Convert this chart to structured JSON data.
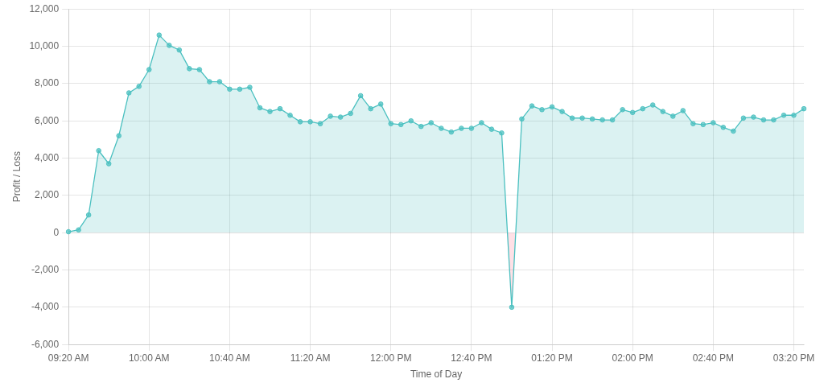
{
  "chart_data": {
    "type": "area",
    "xlabel": "Time of Day",
    "ylabel": "Profit / Loss",
    "categories": [
      "09:20 AM",
      null,
      null,
      null,
      null,
      null,
      null,
      null,
      "10:00 AM",
      null,
      null,
      null,
      null,
      null,
      null,
      null,
      "10:40 AM",
      null,
      null,
      null,
      null,
      null,
      null,
      null,
      "11:20 AM",
      null,
      null,
      null,
      null,
      null,
      null,
      null,
      "12:00 PM",
      null,
      null,
      null,
      null,
      null,
      null,
      null,
      "12:40 PM",
      null,
      null,
      null,
      null,
      null,
      null,
      null,
      "01:20 PM",
      null,
      null,
      null,
      null,
      null,
      null,
      null,
      "02:00 PM",
      null,
      null,
      null,
      null,
      null,
      null,
      null,
      "02:40 PM",
      null,
      null,
      null,
      null,
      null,
      null,
      null,
      "03:20 PM",
      null
    ],
    "series": [
      {
        "color": "#4bc0c0",
        "values": [
          50,
          150,
          950,
          4400,
          3700,
          5200,
          7500,
          7850,
          8750,
          10600,
          10050,
          9800,
          8800,
          8750,
          8100,
          8100,
          7700,
          7700,
          7800,
          6700,
          6500,
          6650,
          6300,
          5950,
          5950,
          5850,
          6250,
          6200,
          6400,
          7350,
          6650,
          6900,
          5850,
          5800,
          6000,
          5700,
          5900,
          5600,
          5400,
          5600,
          5600,
          5900,
          5550,
          5350,
          -4000,
          6100,
          6800,
          6600,
          6750,
          6500,
          6150,
          6150,
          6100,
          6050,
          6050,
          6600,
          6450,
          6650,
          6850,
          6500,
          6250,
          6550,
          5850,
          5800,
          5900,
          5650,
          5450,
          6150,
          6200,
          6050,
          6050,
          6300,
          6300,
          6650
        ]
      }
    ],
    "ylim": [
      -6000,
      12000
    ],
    "yticks": [
      {
        "value": -6000,
        "label": "-6,000"
      },
      {
        "value": -4000,
        "label": "-4,000"
      },
      {
        "value": -2000,
        "label": "-2,000"
      },
      0,
      {
        "value": 2000,
        "label": "2,000"
      },
      {
        "value": 4000,
        "label": "4,000"
      },
      {
        "value": 6000,
        "label": "6,000"
      },
      {
        "value": 8000,
        "label": "8,000"
      },
      {
        "value": 10000,
        "label": "10,000"
      },
      {
        "value": 12000,
        "label": "12,000"
      }
    ],
    "grid": true,
    "marker": "circle"
  }
}
